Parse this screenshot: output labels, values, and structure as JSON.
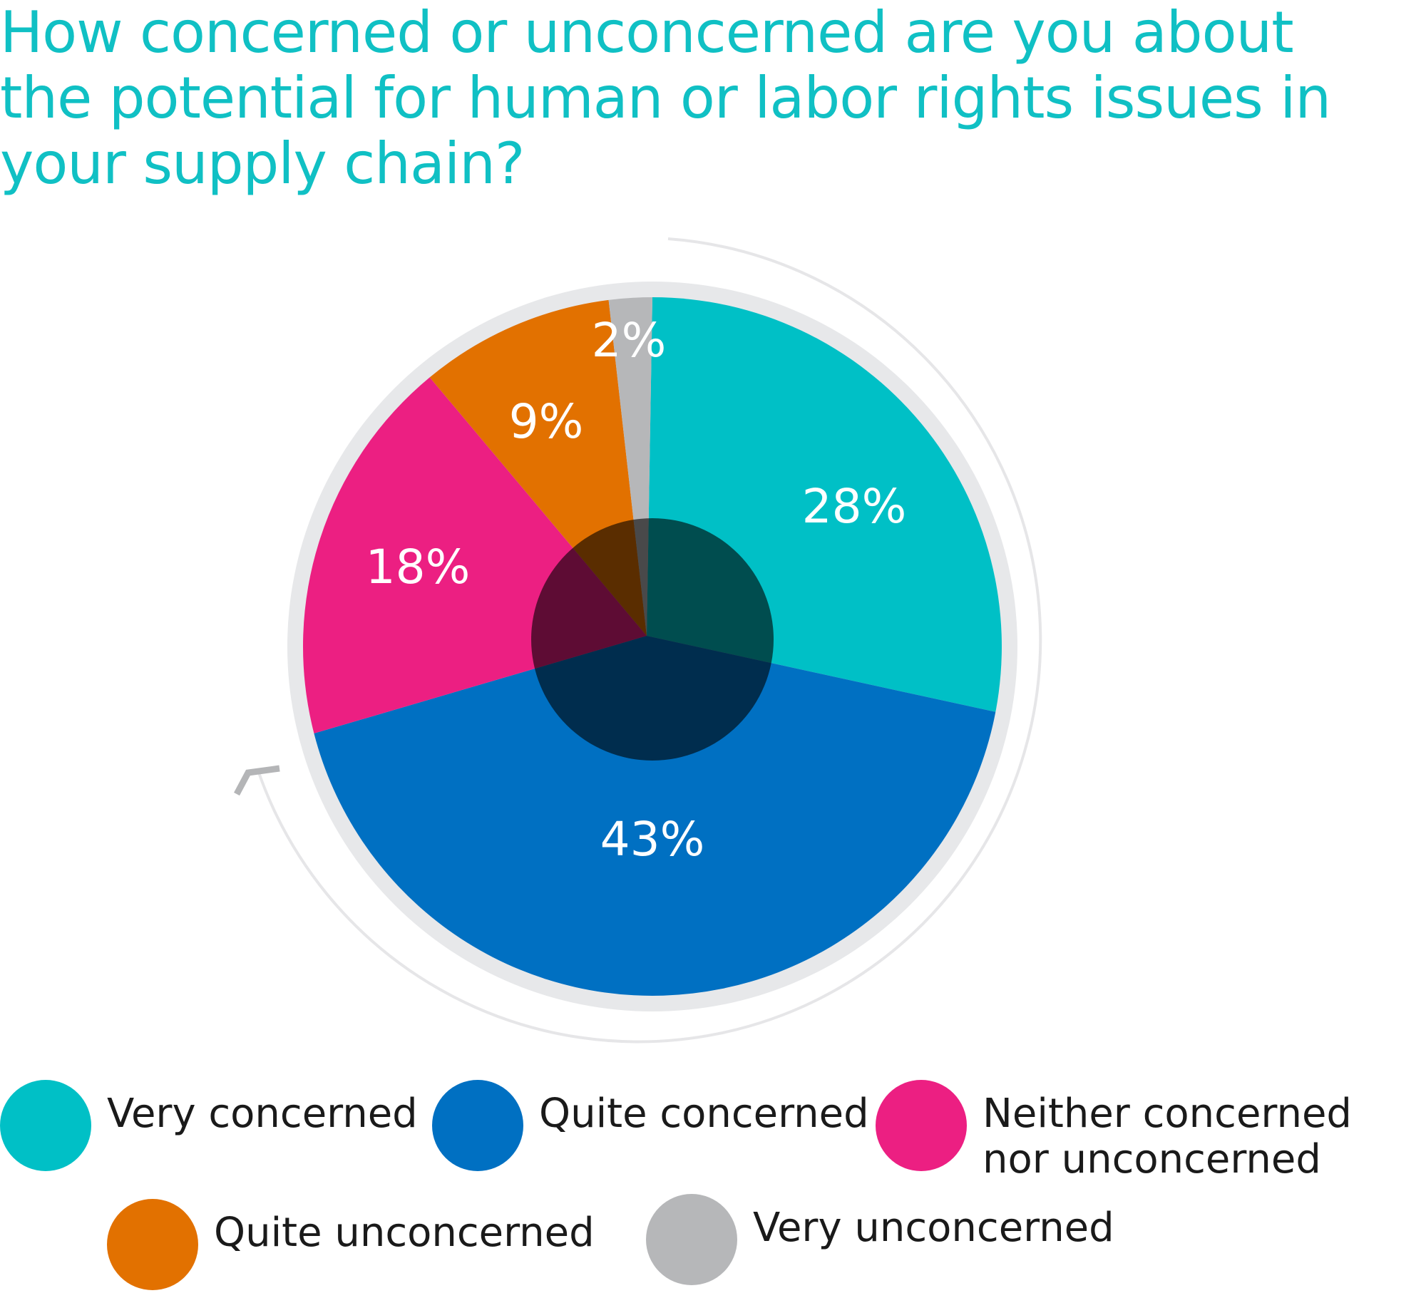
{
  "chart_data": {
    "type": "pie",
    "title": "How concerned or unconcerned are you about the potential for human or labor rights issues in your supply chain?",
    "slices": [
      {
        "label": "Very concerned",
        "value": 28,
        "display": "28%",
        "color": "#00c0c6"
      },
      {
        "label": "Quite concerned",
        "value": 43,
        "display": "43%",
        "color": "#0070c2"
      },
      {
        "label": "Neither concerned nor unconcerned",
        "value": 18,
        "display": "18%",
        "color": "#ec1f82"
      },
      {
        "label": "Quite unconcerned",
        "value": 9,
        "display": "9%",
        "color": "#e27100"
      },
      {
        "label": "Very unconcerned",
        "value": 2,
        "display": "2%",
        "color": "#b6b7b9"
      }
    ],
    "legend": {
      "items": [
        {
          "label": "Very concerned",
          "color": "#00c0c6"
        },
        {
          "label": "Quite concerned",
          "color": "#0070c2"
        },
        {
          "label": "Neither concerned nor unconcerned",
          "line1": "Neither concerned",
          "line2": "nor unconcerned",
          "color": "#ec1f82"
        },
        {
          "label": "Quite unconcerned",
          "color": "#e27100"
        },
        {
          "label": "Very unconcerned",
          "color": "#b6b7b9"
        }
      ]
    }
  }
}
